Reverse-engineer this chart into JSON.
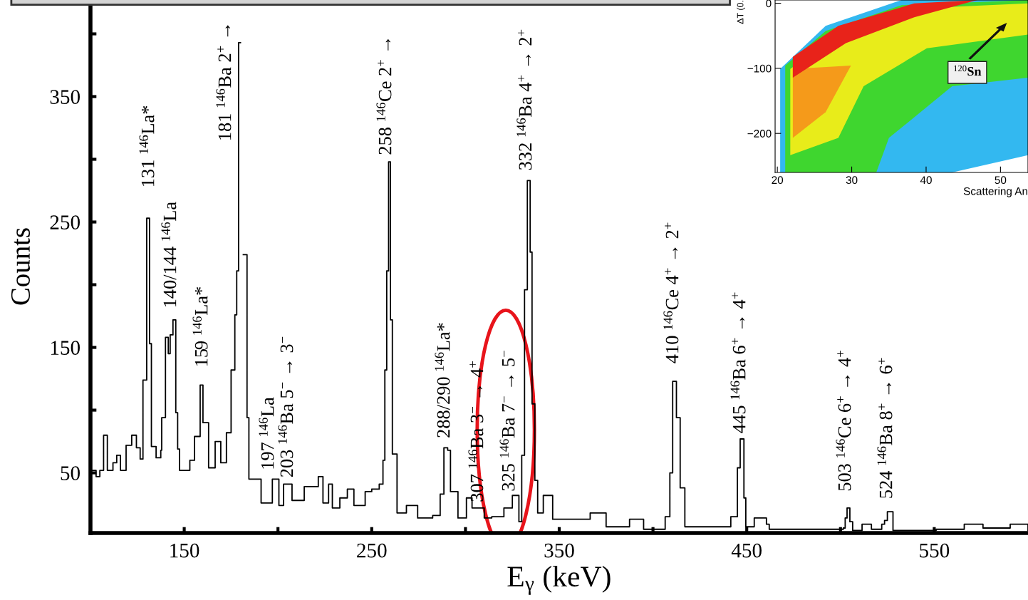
{
  "chart_data": [
    {
      "type": "step",
      "xlabel": "E$_{γ}$ (keV)",
      "ylabel": "Counts",
      "xlim": [
        100,
        600
      ],
      "ylim": [
        2,
        427
      ],
      "xticks": [
        150,
        {
          "value": 200,
          "label": null
        },
        250,
        {
          "value": 300,
          "label": null
        },
        350,
        {
          "value": 400,
          "label": null
        },
        450,
        {
          "value": 500,
          "label": null
        },
        550
      ],
      "yticks": [
        50,
        {
          "value": 100,
          "label": null
        },
        150,
        {
          "value": 200,
          "label": null
        },
        250,
        {
          "value": 300,
          "label": null
        },
        350,
        {
          "value": 400,
          "label": null
        }
      ],
      "grid": false,
      "legend": false,
      "marker": "none",
      "line_style": "solid",
      "series": [
        {
          "color": "#000000",
          "x": [
            100,
            103,
            105,
            107,
            109,
            112,
            114,
            116,
            119,
            122,
            124.5,
            126.5,
            128,
            130,
            131.5,
            132.5,
            135,
            137.5,
            138,
            140,
            141.5,
            142.5,
            144,
            145.5,
            146.5,
            147.5,
            153,
            155.5,
            158.5,
            160,
            163,
            166.5,
            169.5,
            172.5,
            175,
            177,
            178,
            179,
            180,
            181.5,
            183.5,
            184.5,
            191,
            197,
            200.5,
            203,
            207.5,
            214,
            221.5,
            224,
            227,
            229,
            233,
            237,
            240.5,
            246.5,
            250,
            254,
            256,
            257,
            258,
            259,
            260,
            261,
            263.5,
            268.5,
            274.5,
            282.5,
            286.5,
            288.5,
            290.5,
            292,
            296,
            300.5,
            303.5,
            310,
            314,
            320.5,
            325,
            328.5,
            330,
            331.5,
            333,
            334.5,
            335.5,
            337,
            338.5,
            341.5,
            346.5,
            354.5,
            366.5,
            375,
            387.5,
            395,
            406.5,
            409,
            410.5,
            412.5,
            414.5,
            417,
            429.5,
            441.5,
            445,
            446.5,
            448.5,
            449.5,
            454,
            460.5,
            462,
            487.5,
            501.5,
            502.5,
            503.5,
            505,
            506.5,
            511.5,
            516.5,
            522,
            523.5,
            525,
            527,
            528,
            551,
            566,
            576,
            590.5,
            600
          ],
          "values": [
            52,
            47,
            52,
            80,
            52,
            58,
            64,
            52,
            72,
            80,
            70,
            61,
            124,
            253,
            153,
            71,
            62,
            68,
            94,
            158,
            145,
            160,
            172,
            98,
            69,
            52,
            60,
            79,
            120,
            90,
            54,
            75,
            58,
            82,
            132,
            176,
            211,
            393,
            null,
            224,
            94,
            45,
            26,
            45,
            24,
            41,
            28,
            39,
            47,
            26,
            41,
            22,
            30,
            37,
            24,
            35,
            37,
            41,
            60,
            132,
            211,
            298,
            172,
            65,
            18,
            24,
            14,
            16,
            33,
            70,
            68,
            35,
            14,
            30,
            22,
            14,
            15,
            22,
            32,
            11,
            64,
            196,
            283,
            226,
            105,
            44,
            18,
            32,
            13,
            13,
            18,
            7,
            13,
            5,
            15,
            50,
            123,
            94,
            38,
            7,
            7,
            15,
            54,
            77,
            30,
            7,
            14,
            9,
            5,
            5,
            6,
            14,
            22,
            11,
            4,
            9,
            5,
            9,
            12,
            19,
            19,
            4,
            5,
            9,
            6,
            9,
            4
          ]
        }
      ],
      "annotations": [
        "131 $^{146}$La*",
        "140/144 $^{146}$La",
        "159 $^{146}$La*",
        "181 $^{146}$Ba 2$^{+}$ →",
        "197 $^{146}$La",
        "203 $^{146}$Ba 5$^{−}$ → 3$^{−}$",
        "258 $^{146}$Ce 2$^{+}$ →",
        "288/290 $^{146}$La*",
        "307 $^{146}$Ba 3$^{−}$ → 4$^{+}$",
        "325 $^{146}$Ba 7$^{−}$ → 5$^{−}$",
        "332 $^{146}$Ba 4$^{+}$ → 2$^{+}$",
        "410 $^{146}$Ce 4$^{+}$ → 2$^{+}$",
        "445 $^{146}$Ba 6$^{+}$ → 4$^{+}$",
        "503 $^{146}$Ce 6$^{+}$ → 4$^{+}$",
        "524 $^{146}$Ba 8$^{+}$ → 6$^{+}$"
      ]
    },
    {
      "type": "scatter",
      "xlabel": "Scattering An",
      "ylabel": "ΔT (0.",
      "xlim": [
        19.7,
        53.7
      ],
      "ylim": [
        -260,
        5
      ],
      "xticks": [
        20,
        30,
        40,
        50
      ],
      "yticks": [
        {
          "value": -200,
          "label": "−200"
        },
        {
          "value": -100,
          "label": "−100"
        },
        0
      ],
      "annotations": [
        "$^{120}$Sn"
      ]
    }
  ]
}
